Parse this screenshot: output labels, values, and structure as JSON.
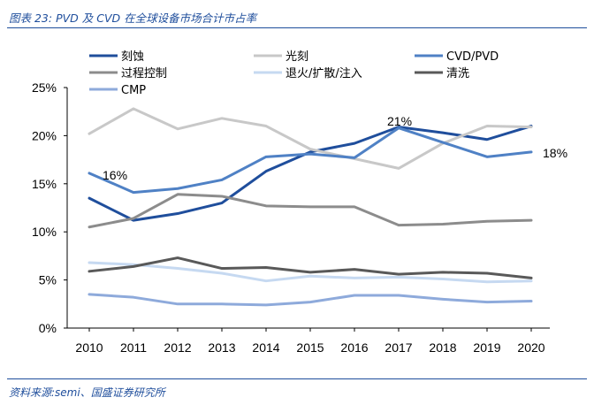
{
  "caption": "图表 23:  PVD 及 CVD 在全球设备市场合计市占率",
  "source": "资料来源:semi、国盛证券研究所",
  "chart_data": {
    "type": "line",
    "x": [
      "2010",
      "2011",
      "2012",
      "2013",
      "2014",
      "2015",
      "2016",
      "2017",
      "2018",
      "2019",
      "2020"
    ],
    "yticks": [
      "0%",
      "5%",
      "10%",
      "15%",
      "20%",
      "25%"
    ],
    "ylim": [
      0,
      25
    ],
    "grid": false,
    "legend_position": "top",
    "series": [
      {
        "name": "刻蚀",
        "color": "#1f4e9c",
        "values": [
          13.5,
          11.2,
          11.9,
          13.0,
          16.3,
          18.3,
          19.2,
          20.9,
          20.3,
          19.6,
          21.0
        ]
      },
      {
        "name": "光刻",
        "color": "#c8c8c8",
        "values": [
          20.2,
          22.8,
          20.7,
          21.8,
          21.0,
          18.6,
          17.6,
          16.6,
          19.2,
          21.0,
          20.9
        ]
      },
      {
        "name": "CVD/PVD",
        "color": "#4f81c5",
        "values": [
          16.1,
          14.1,
          14.5,
          15.4,
          17.8,
          18.1,
          17.7,
          20.8,
          19.3,
          17.8,
          18.3
        ]
      },
      {
        "name": "过程控制",
        "color": "#8c8c8c",
        "values": [
          10.5,
          11.4,
          13.9,
          13.7,
          12.7,
          12.6,
          12.6,
          10.7,
          10.8,
          11.1,
          11.2
        ]
      },
      {
        "name": "退火/扩散/注入",
        "color": "#c6d9f1",
        "values": [
          6.8,
          6.6,
          6.2,
          5.7,
          4.9,
          5.4,
          5.2,
          5.3,
          5.1,
          4.8,
          4.9
        ]
      },
      {
        "name": "清洗",
        "color": "#595959",
        "values": [
          5.9,
          6.4,
          7.3,
          6.2,
          6.3,
          5.8,
          6.1,
          5.6,
          5.8,
          5.7,
          5.2
        ]
      },
      {
        "name": "CMP",
        "color": "#8eaadb",
        "values": [
          3.5,
          3.2,
          2.5,
          2.5,
          2.4,
          2.7,
          3.4,
          3.4,
          3.0,
          2.7,
          2.8
        ]
      }
    ],
    "annotations": [
      "16%",
      "21%",
      "18%"
    ]
  }
}
